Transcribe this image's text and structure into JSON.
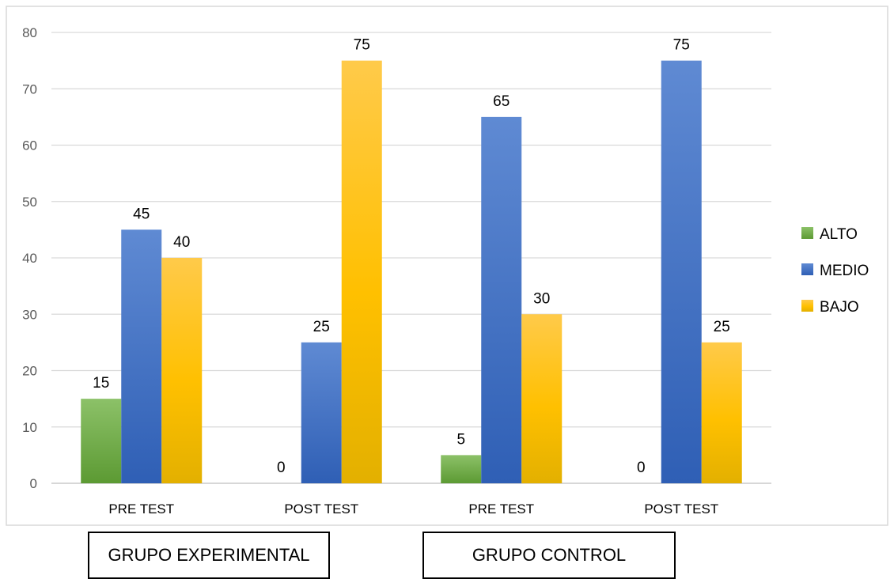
{
  "chart_data": {
    "type": "bar",
    "categories": [
      "PRE TEST",
      "POST TEST",
      "PRE TEST",
      "POST TEST"
    ],
    "groups": [
      "GRUPO EXPERIMENTAL",
      "GRUPO CONTROL"
    ],
    "series": [
      {
        "name": "ALTO",
        "values": [
          15,
          0,
          5,
          0
        ],
        "color": "#70ad47"
      },
      {
        "name": "MEDIO",
        "values": [
          45,
          25,
          65,
          75
        ],
        "color": "#4472c4"
      },
      {
        "name": "BAJO",
        "values": [
          40,
          75,
          30,
          25
        ],
        "color": "#ffc000"
      }
    ],
    "yticks": [
      0,
      10,
      20,
      30,
      40,
      50,
      60,
      70,
      80
    ],
    "ylim": [
      0,
      80
    ],
    "grid": true,
    "legend": "right",
    "title": "",
    "xlabel": "",
    "ylabel": ""
  }
}
